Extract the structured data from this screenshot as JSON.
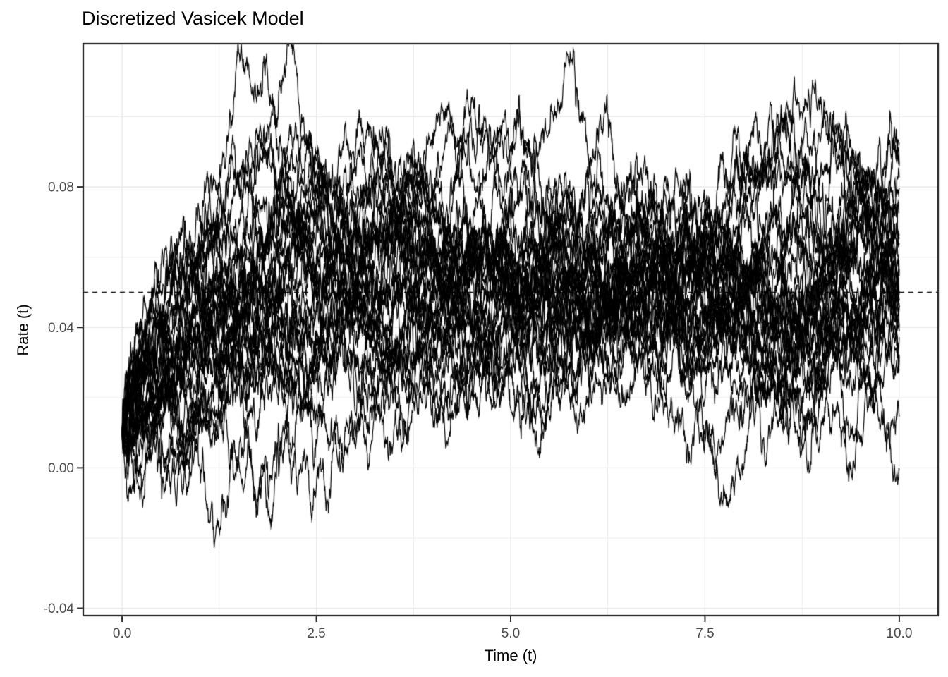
{
  "page": {
    "background": "#FFFFFF"
  },
  "chart_data": {
    "type": "line",
    "title": "Discretized Vasicek Model",
    "xlabel": "Time (t)",
    "ylabel": "Rate (t)",
    "x_tick_values": [
      0,
      2.5,
      5,
      7.5,
      10
    ],
    "x_tick_labels": [
      "0.0",
      "2.5",
      "5.0",
      "7.5",
      "10.0"
    ],
    "y_tick_values": [
      -0.04,
      0,
      0.04,
      0.08
    ],
    "y_tick_labels": [
      "-0.04",
      "0.00",
      "0.04",
      "0.08"
    ],
    "x_minor_gridlines": [
      1.25,
      3.75,
      6.25,
      8.75
    ],
    "y_minor_gridlines": [
      -0.02,
      0.02,
      0.06,
      0.1
    ],
    "xlim": [
      -0.5,
      10.5
    ],
    "ylim": [
      -0.0421,
      0.1208
    ],
    "grid": true,
    "legend": "none",
    "reference_line": {
      "orientation": "horizontal",
      "value": 0.05,
      "style": "dashed",
      "color": "#000000"
    },
    "line_color": "#000000",
    "simulation": {
      "model": "vasicek",
      "n_paths": 30,
      "r0": 0.01,
      "long_term_mean": 0.05,
      "reversion_speed": 0.9,
      "volatility": 0.028,
      "dt": 0.005,
      "t_max": 10,
      "seed": 20
    }
  },
  "theme": {
    "panel_background": "#FFFFFF",
    "panel_border": "#333333",
    "grid_color": "#EBEBEB",
    "tick_mark_color": "#333333",
    "tick_label_color": "#4D4D4D",
    "axis_title_color": "#000000",
    "title_color": "#000000"
  }
}
